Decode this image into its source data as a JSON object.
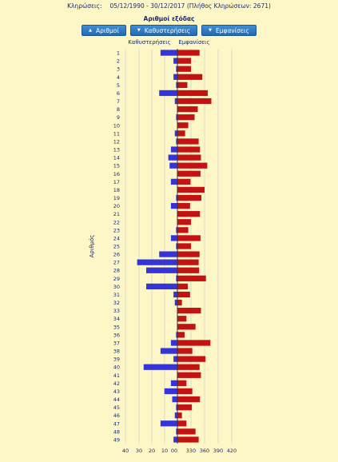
{
  "header": {
    "draws_label": "Κληρώσεις:",
    "date_range": "05/12/1990 - 30/12/2017",
    "draws_total": "(Πλήθος Κληρώσεων: 2671)"
  },
  "sort_buttons": [
    {
      "label": "Αριθμοί"
    },
    {
      "label": "Καθυστερήσεις"
    },
    {
      "label": "Εμφανίσεις"
    }
  ],
  "chart_data": {
    "type": "bar",
    "title": "Αριθμοί εξόδας",
    "ylabel": "Αριθμός",
    "left_series_label": "Καθυστερήσεις",
    "right_series_label": "Εμφανίσεις",
    "colors": {
      "delays": "#3434d8",
      "appearances": "#c41212",
      "grid": "#c9c9c9",
      "axis": "#333333"
    },
    "delay_ticks": [
      "40",
      "30",
      "20",
      "10",
      "0"
    ],
    "appearance_ticks": [
      "0",
      "330",
      "360",
      "390",
      "420"
    ],
    "delay_xlim": [
      0,
      40
    ],
    "appearance_xlim": [
      300,
      420
    ],
    "categories": [
      "1",
      "2",
      "3",
      "4",
      "5",
      "6",
      "7",
      "8",
      "9",
      "10",
      "11",
      "12",
      "13",
      "14",
      "15",
      "16",
      "17",
      "18",
      "19",
      "20",
      "21",
      "22",
      "23",
      "24",
      "25",
      "26",
      "27",
      "28",
      "29",
      "30",
      "31",
      "32",
      "33",
      "34",
      "35",
      "36",
      "37",
      "38",
      "39",
      "40",
      "41",
      "42",
      "43",
      "44",
      "45",
      "46",
      "47",
      "48",
      "49"
    ],
    "series": [
      {
        "name": "Καθυστερήσεις",
        "values": [
          13,
          3,
          1,
          3,
          1,
          14,
          2,
          0,
          1,
          0,
          2,
          1,
          5,
          7,
          6,
          0,
          5,
          0,
          1,
          5,
          0,
          0,
          1,
          5,
          1,
          14,
          31,
          24,
          1,
          24,
          3,
          2,
          0,
          0,
          0,
          1,
          5,
          13,
          3,
          26,
          0,
          5,
          10,
          4,
          1,
          2,
          13,
          1,
          3
        ]
      },
      {
        "name": "Εμφανίσεις",
        "values": [
          349,
          330,
          330,
          355,
          322,
          367,
          375,
          345,
          338,
          324,
          317,
          347,
          350,
          352,
          366,
          351,
          329,
          360,
          353,
          328,
          350,
          330,
          324,
          351,
          330,
          349,
          347,
          348,
          363,
          323,
          328,
          310,
          352,
          320,
          340,
          316,
          373,
          333,
          362,
          349,
          352,
          320,
          333,
          350,
          332,
          310,
          320,
          340,
          347
        ]
      }
    ]
  }
}
